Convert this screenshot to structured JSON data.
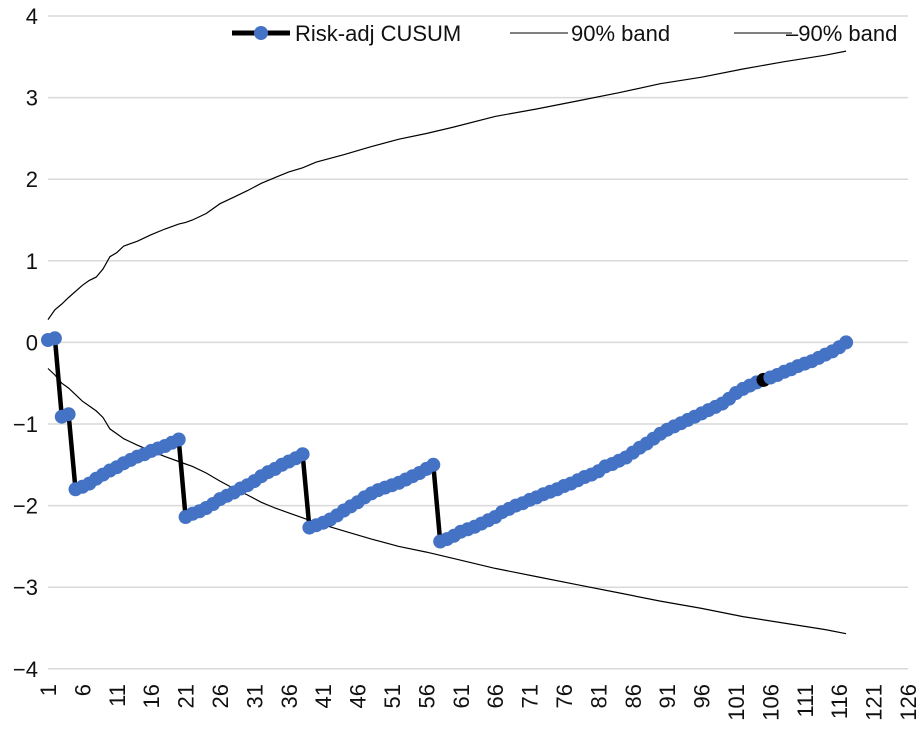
{
  "chart_data": {
    "type": "line",
    "title": "",
    "xlabel": "",
    "ylabel": "",
    "xlim": [
      1,
      126
    ],
    "ylim": [
      -4,
      4
    ],
    "yticks": [
      4,
      3,
      2,
      1,
      0,
      -1,
      -2,
      -3,
      -4
    ],
    "ytick_labels": [
      "4",
      "3",
      "2",
      "1",
      "0",
      "−1",
      "−2",
      "−3",
      "−4"
    ],
    "xtick_labels": [
      "1",
      "6",
      "11",
      "16",
      "21",
      "26",
      "31",
      "36",
      "41",
      "46",
      "51",
      "56",
      "61",
      "66",
      "71",
      "76",
      "81",
      "86",
      "91",
      "96",
      "101",
      "106",
      "111",
      "116",
      "121",
      "126"
    ],
    "grid": "horizontal",
    "legend_position": "top-right",
    "colors": {
      "cusum_line": "#000000",
      "cusum_marker": "#4472c4",
      "highlight_marker": "#000000",
      "band": "#000000",
      "grid": "#d9d9d9"
    },
    "series": [
      {
        "name": "Risk-adj CUSUM",
        "style": "line-markers",
        "x": [
          1,
          2,
          3,
          4,
          5,
          6,
          7,
          8,
          9,
          10,
          11,
          12,
          13,
          14,
          15,
          16,
          17,
          18,
          19,
          20,
          21,
          22,
          23,
          24,
          25,
          26,
          27,
          28,
          29,
          30,
          31,
          32,
          33,
          34,
          35,
          36,
          37,
          38,
          39,
          40,
          41,
          42,
          43,
          44,
          45,
          46,
          47,
          48,
          49,
          50,
          51,
          52,
          53,
          54,
          55,
          56,
          57,
          58,
          59,
          60,
          61,
          62,
          63,
          64,
          65,
          66,
          67,
          68,
          69,
          70,
          71,
          72,
          73,
          74,
          75,
          76,
          77,
          78,
          79,
          80,
          81,
          82,
          83,
          84,
          85,
          86,
          87,
          88,
          89,
          90,
          91,
          92,
          93,
          94,
          95,
          96,
          97,
          98,
          99,
          100,
          101,
          102,
          103,
          104,
          105,
          106,
          107,
          108,
          109,
          110,
          111,
          112,
          113,
          114,
          115,
          116,
          117
        ],
        "values": [
          0.03,
          0.05,
          -0.91,
          -0.88,
          -1.8,
          -1.77,
          -1.73,
          -1.67,
          -1.62,
          -1.57,
          -1.53,
          -1.48,
          -1.44,
          -1.4,
          -1.37,
          -1.33,
          -1.3,
          -1.27,
          -1.23,
          -1.19,
          -2.14,
          -2.1,
          -2.07,
          -2.03,
          -1.98,
          -1.92,
          -1.88,
          -1.84,
          -1.79,
          -1.75,
          -1.7,
          -1.64,
          -1.59,
          -1.55,
          -1.5,
          -1.46,
          -1.42,
          -1.37,
          -2.27,
          -2.24,
          -2.21,
          -2.17,
          -2.12,
          -2.06,
          -2.01,
          -1.96,
          -1.9,
          -1.85,
          -1.81,
          -1.78,
          -1.75,
          -1.72,
          -1.68,
          -1.64,
          -1.6,
          -1.55,
          -1.5,
          -2.44,
          -2.41,
          -2.37,
          -2.32,
          -2.29,
          -2.26,
          -2.22,
          -2.18,
          -2.14,
          -2.08,
          -2.04,
          -2.0,
          -1.97,
          -1.93,
          -1.9,
          -1.86,
          -1.83,
          -1.8,
          -1.76,
          -1.73,
          -1.69,
          -1.65,
          -1.62,
          -1.58,
          -1.52,
          -1.49,
          -1.45,
          -1.41,
          -1.35,
          -1.29,
          -1.24,
          -1.18,
          -1.12,
          -1.07,
          -1.03,
          -0.99,
          -0.95,
          -0.91,
          -0.87,
          -0.83,
          -0.79,
          -0.75,
          -0.69,
          -0.62,
          -0.57,
          -0.53,
          -0.49,
          -0.46,
          -0.43,
          -0.4,
          -0.36,
          -0.33,
          -0.29,
          -0.26,
          -0.23,
          -0.19,
          -0.15,
          -0.11,
          -0.06,
          0.0
        ],
        "highlight_index": 104
      },
      {
        "name": "90% band",
        "style": "line",
        "x": [
          1,
          2,
          3,
          4,
          6,
          7,
          8,
          9,
          10,
          11,
          12,
          14,
          16,
          18,
          20,
          21,
          22,
          24,
          26,
          28,
          30,
          32,
          34,
          36,
          38,
          40,
          44,
          48,
          52,
          56,
          60,
          66,
          72,
          78,
          84,
          90,
          96,
          102,
          108,
          114,
          117
        ],
        "values": [
          0.28,
          0.4,
          0.47,
          0.55,
          0.7,
          0.76,
          0.8,
          0.9,
          1.05,
          1.1,
          1.18,
          1.24,
          1.32,
          1.39,
          1.45,
          1.47,
          1.5,
          1.58,
          1.7,
          1.78,
          1.86,
          1.95,
          2.02,
          2.09,
          2.14,
          2.21,
          2.3,
          2.4,
          2.49,
          2.56,
          2.64,
          2.77,
          2.86,
          2.96,
          3.06,
          3.17,
          3.25,
          3.35,
          3.44,
          3.52,
          3.57
        ]
      },
      {
        "name": "–90% band",
        "style": "line",
        "x": [
          1,
          2,
          3,
          4,
          6,
          7,
          8,
          9,
          10,
          11,
          12,
          14,
          16,
          18,
          20,
          21,
          22,
          24,
          26,
          28,
          30,
          32,
          34,
          36,
          38,
          40,
          44,
          48,
          52,
          56,
          60,
          66,
          72,
          78,
          84,
          90,
          96,
          102,
          108,
          114,
          117
        ],
        "values": [
          -0.32,
          -0.4,
          -0.5,
          -0.56,
          -0.72,
          -0.78,
          -0.84,
          -0.92,
          -1.06,
          -1.12,
          -1.18,
          -1.26,
          -1.33,
          -1.4,
          -1.46,
          -1.49,
          -1.52,
          -1.6,
          -1.7,
          -1.79,
          -1.87,
          -1.96,
          -2.03,
          -2.09,
          -2.15,
          -2.21,
          -2.31,
          -2.41,
          -2.5,
          -2.57,
          -2.65,
          -2.77,
          -2.87,
          -2.97,
          -3.07,
          -3.17,
          -3.26,
          -3.36,
          -3.44,
          -3.52,
          -3.57
        ]
      }
    ]
  }
}
